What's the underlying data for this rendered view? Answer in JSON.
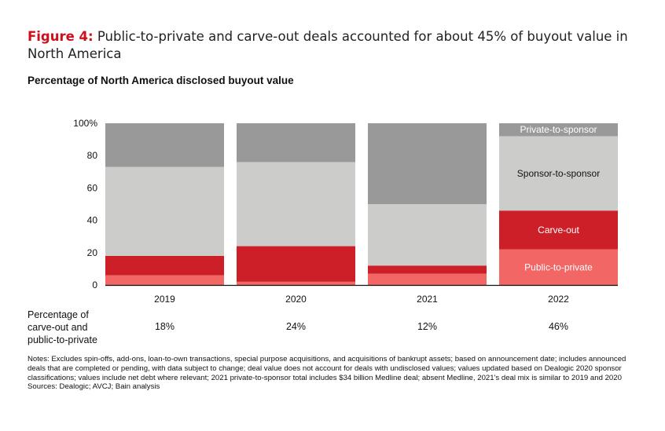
{
  "header": {
    "figure_label": "Figure 4:",
    "title_text": " Public-to-private and carve-out deals accounted for about 45% of buyout value in North America",
    "subtitle": "Percentage of North America disclosed buyout value"
  },
  "chart_data": {
    "type": "bar",
    "stacked": true,
    "title": "Percentage of North America disclosed buyout value",
    "xlabel": "",
    "ylabel": "",
    "ylim": [
      0,
      100
    ],
    "yticks": [
      0,
      20,
      40,
      60,
      80,
      100
    ],
    "ytick_labels": [
      "0",
      "20",
      "40",
      "60",
      "80",
      "100%"
    ],
    "categories": [
      "2019",
      "2020",
      "2021",
      "2022"
    ],
    "series": [
      {
        "name": "Public-to-private",
        "color": "#f26666",
        "label_color": "#ffffff",
        "values": [
          6,
          2,
          7,
          22
        ]
      },
      {
        "name": "Carve-out",
        "color": "#cc1f27",
        "label_color": "#ffffff",
        "values": [
          12,
          22,
          5,
          24
        ]
      },
      {
        "name": "Sponsor-to-sponsor",
        "color": "#cccccb",
        "label_color": "#111111",
        "values": [
          55,
          52,
          38,
          46
        ]
      },
      {
        "name": "Private-to-sponsor",
        "color": "#989998",
        "label_color": "#ffffff",
        "values": [
          27,
          24,
          50,
          8
        ]
      }
    ],
    "labeled_category": "2022",
    "legend": "inline-labels-on-last-bar",
    "grid": false
  },
  "table_row": {
    "label_lines": [
      "Percentage of",
      "carve-out and",
      "public-to-private"
    ],
    "values": [
      "18%",
      "24%",
      "12%",
      "46%"
    ]
  },
  "notes": {
    "text": "Notes: Excludes spin-offs, add-ons, loan-to-own transactions, special purpose acquisitions, and acquisitions of bankrupt assets; based on announcement date; includes announced deals that are completed or pending, with data subject to change; deal value does not account for deals with undisclosed values; values updated based on Dealogic 2020 sponsor classifications; values include net debt where relevant; 2021 private-to-sponsor total includes $34 billion Medline deal; absent Medline, 2021's deal mix is similar to 2019 and 2020",
    "sources": "Sources: Dealogic; AVCJ; Bain analysis"
  }
}
